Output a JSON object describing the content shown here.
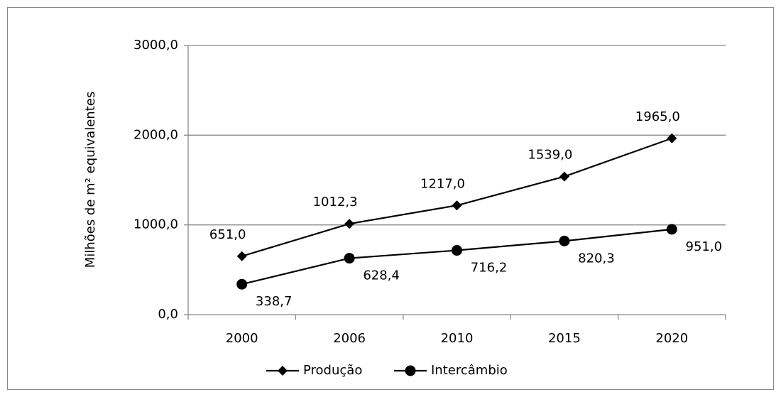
{
  "chart_data": {
    "type": "line",
    "y_label": "Milhões de m² equivalentes",
    "categories": [
      "2000",
      "2006",
      "2010",
      "2015",
      "2020"
    ],
    "series": [
      {
        "name": "Produção",
        "color": "#000000",
        "marker": "diamond",
        "values": [
          651.0,
          1012.3,
          1217.0,
          1539.0,
          1965.0
        ],
        "value_labels": [
          "651,0",
          "1012,3",
          "1217,0",
          "1539,0",
          "1965,0"
        ]
      },
      {
        "name": "Intercâmbio",
        "color": "#000000",
        "marker": "circle",
        "values": [
          338.7,
          628.4,
          716.2,
          820.3,
          951.0
        ],
        "value_labels": [
          "338,7",
          "628,4",
          "716,2",
          "820,3",
          "951,0"
        ]
      }
    ],
    "ylim": [
      0,
      3000
    ],
    "yticks": [
      {
        "value": 0,
        "label": "0,0"
      },
      {
        "value": 1000,
        "label": "1000,0"
      },
      {
        "value": 2000,
        "label": "2000,0"
      },
      {
        "value": 3000,
        "label": "3000,0"
      }
    ],
    "grid": true
  }
}
